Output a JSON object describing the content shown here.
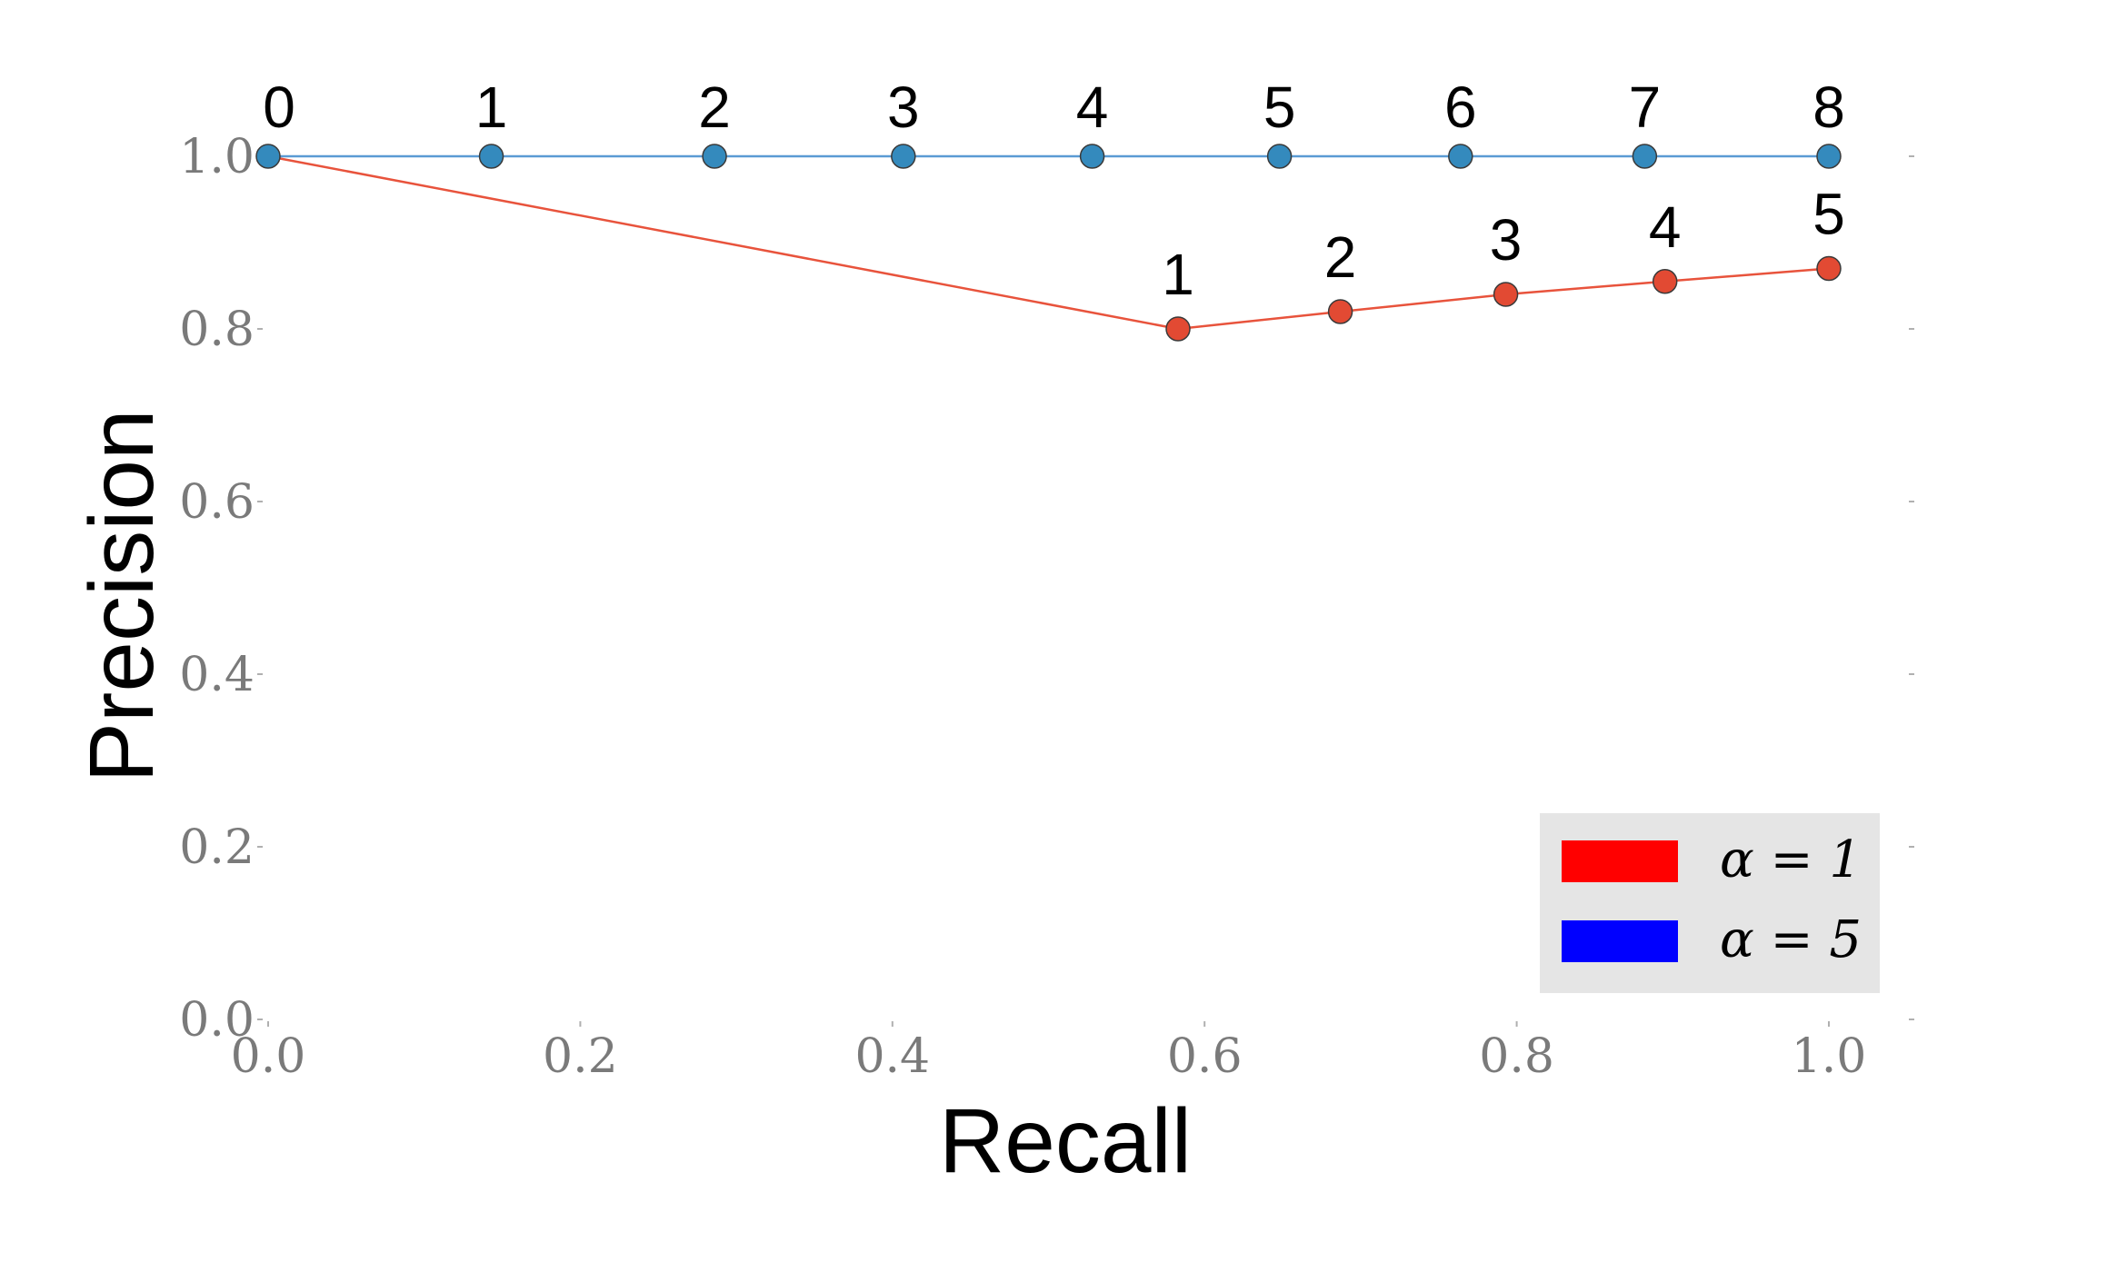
{
  "chart_data": {
    "type": "line",
    "title": "",
    "xlabel": "Recall",
    "ylabel": "Precision",
    "xlim": [
      0.0,
      1.0
    ],
    "ylim": [
      0.0,
      1.0
    ],
    "x_ticks": [
      "0.0",
      "0.2",
      "0.4",
      "0.6",
      "0.8",
      "1.0"
    ],
    "y_ticks": [
      "0.0",
      "0.2",
      "0.4",
      "0.6",
      "0.8",
      "1.0"
    ],
    "grid": false,
    "legend_placement": "bottom-right",
    "series": [
      {
        "name": "α = 1",
        "legend_color": "#ff0000",
        "line_color": "#e8533c",
        "marker_color": "#e24a33",
        "points": [
          {
            "x": 0.0,
            "y": 1.0,
            "label": ""
          },
          {
            "x": 0.583,
            "y": 0.8,
            "label": "1"
          },
          {
            "x": 0.687,
            "y": 0.82,
            "label": "2"
          },
          {
            "x": 0.793,
            "y": 0.84,
            "label": "3"
          },
          {
            "x": 0.895,
            "y": 0.855,
            "label": "4"
          },
          {
            "x": 1.0,
            "y": 0.87,
            "label": "5"
          }
        ]
      },
      {
        "name": "α = 5",
        "legend_color": "#0000ff",
        "line_color": "#5a9bd4",
        "marker_color": "#348abd",
        "points": [
          {
            "x": 0.0,
            "y": 1.0,
            "label": "0"
          },
          {
            "x": 0.143,
            "y": 1.0,
            "label": "1"
          },
          {
            "x": 0.286,
            "y": 1.0,
            "label": "2"
          },
          {
            "x": 0.407,
            "y": 1.0,
            "label": "3"
          },
          {
            "x": 0.528,
            "y": 1.0,
            "label": "4"
          },
          {
            "x": 0.648,
            "y": 1.0,
            "label": "5"
          },
          {
            "x": 0.764,
            "y": 1.0,
            "label": "6"
          },
          {
            "x": 0.882,
            "y": 1.0,
            "label": "7"
          },
          {
            "x": 1.0,
            "y": 1.0,
            "label": "8"
          }
        ]
      }
    ]
  }
}
